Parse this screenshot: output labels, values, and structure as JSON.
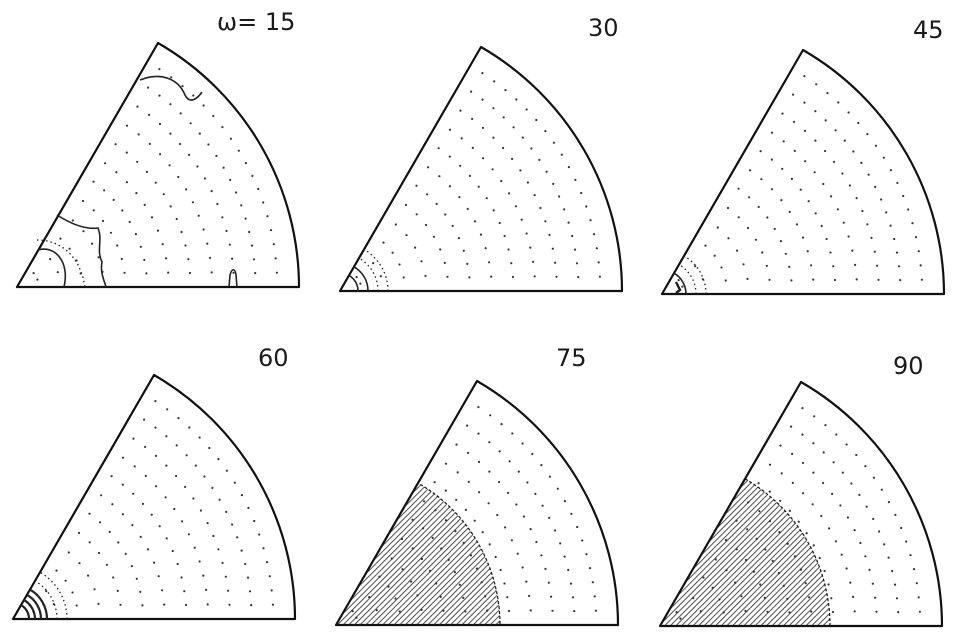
{
  "figure": {
    "panels": [
      {
        "label": "ω= 15"
      },
      {
        "label": "30"
      },
      {
        "label": "45"
      },
      {
        "label": "60"
      },
      {
        "label": "75"
      },
      {
        "label": "90"
      }
    ]
  },
  "colors": {
    "ink": "#111111",
    "background": "#ffffff"
  }
}
